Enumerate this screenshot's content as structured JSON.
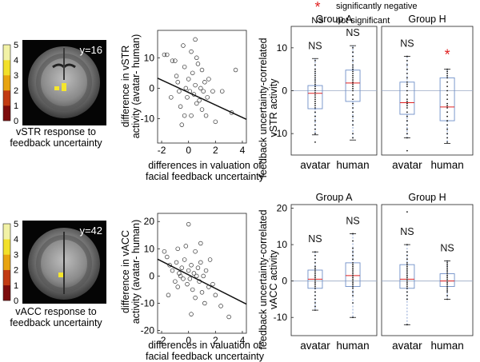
{
  "legend": {
    "sig_symbol": "*",
    "sig_label": "significantly negative",
    "ns_symbol": "NS",
    "ns_label": "not significant",
    "sig_color": "#e02020"
  },
  "colorbar": {
    "ticks": [
      "5",
      "4",
      "3",
      "2",
      "1",
      "0"
    ],
    "colors": [
      "#f2f2a6",
      "#f2e02a",
      "#e8a410",
      "#c23a12",
      "#7d0b0b"
    ]
  },
  "chart_data": [
    {
      "id": "vstr",
      "type": "scatter",
      "brain_image": {
        "slice_label": "y=16",
        "caption": [
          "vSTR response to",
          "feedback uncertainty"
        ]
      },
      "xlabel": "differences in valuation of",
      "xlabel2": "facial feedback uncertainty",
      "ylabel": "difference in vSTR",
      "ylabel2": "activity (avatar- human)",
      "xlim": [
        -2.3,
        4.3
      ],
      "ylim": [
        -18,
        19
      ],
      "xticks": [
        -2,
        0,
        2,
        4
      ],
      "yticks": [
        10,
        0,
        -10
      ],
      "fit_line": {
        "x": [
          -2.3,
          4.3
        ],
        "y": [
          3.3,
          -10.2
        ]
      },
      "points": [
        [
          -1.8,
          11
        ],
        [
          -1.6,
          11
        ],
        [
          -1.2,
          9
        ],
        [
          -1.0,
          9
        ],
        [
          -0.9,
          4
        ],
        [
          -0.8,
          2
        ],
        [
          -0.7,
          -1
        ],
        [
          -0.6,
          -6
        ],
        [
          -0.5,
          -12
        ],
        [
          -0.4,
          14
        ],
        [
          -0.3,
          7
        ],
        [
          -0.2,
          0
        ],
        [
          -0.1,
          -3
        ],
        [
          0.0,
          3
        ],
        [
          0.1,
          -1
        ],
        [
          0.2,
          12
        ],
        [
          0.2,
          -9
        ],
        [
          0.3,
          5
        ],
        [
          0.4,
          -2
        ],
        [
          0.5,
          1
        ],
        [
          0.5,
          16
        ],
        [
          0.6,
          -5
        ],
        [
          0.7,
          8
        ],
        [
          0.8,
          -4
        ],
        [
          0.9,
          0
        ],
        [
          1.0,
          -7
        ],
        [
          1.0,
          6
        ],
        [
          1.1,
          -1
        ],
        [
          1.2,
          2
        ],
        [
          1.3,
          -9
        ],
        [
          1.4,
          -3
        ],
        [
          1.5,
          3
        ],
        [
          1.8,
          -1
        ],
        [
          2.0,
          -11
        ],
        [
          2.5,
          -1
        ],
        [
          3.2,
          -8
        ],
        [
          3.5,
          6
        ],
        [
          -1.3,
          -3
        ],
        [
          -0.3,
          -9
        ],
        [
          0.6,
          10
        ]
      ]
    },
    {
      "id": "vacc",
      "type": "scatter",
      "brain_image": {
        "slice_label": "y=42",
        "caption": [
          "vACC response to",
          "feedback uncertainty"
        ]
      },
      "xlabel": "differences in valuation of",
      "xlabel2": "facial feedback uncertainty",
      "ylabel": "difference in vACC",
      "ylabel2": "activity (avatar- human)",
      "xlim": [
        -2.3,
        4.3
      ],
      "ylim": [
        -21,
        23
      ],
      "xticks": [
        -2,
        0,
        2,
        4
      ],
      "yticks": [
        20,
        10,
        0,
        -10,
        -20
      ],
      "fit_line": {
        "x": [
          -2.3,
          4.3
        ],
        "y": [
          6.2,
          -10.3
        ]
      },
      "points": [
        [
          -1.8,
          9
        ],
        [
          -1.6,
          7
        ],
        [
          -1.4,
          4
        ],
        [
          -1.2,
          2
        ],
        [
          -1.0,
          -2
        ],
        [
          -0.9,
          5
        ],
        [
          -0.8,
          -4
        ],
        [
          -0.7,
          1
        ],
        [
          -0.6,
          0
        ],
        [
          -0.5,
          3
        ],
        [
          -0.4,
          -1
        ],
        [
          -0.3,
          6
        ],
        [
          -0.2,
          11
        ],
        [
          -0.1,
          -3
        ],
        [
          0.0,
          2
        ],
        [
          0.0,
          19
        ],
        [
          0.1,
          -1
        ],
        [
          0.2,
          4
        ],
        [
          0.3,
          -5
        ],
        [
          0.4,
          1
        ],
        [
          0.5,
          9
        ],
        [
          0.5,
          -8
        ],
        [
          0.6,
          0
        ],
        [
          0.7,
          3
        ],
        [
          0.8,
          -2
        ],
        [
          0.9,
          5
        ],
        [
          1.0,
          -6
        ],
        [
          1.1,
          0
        ],
        [
          1.2,
          -10
        ],
        [
          1.3,
          2
        ],
        [
          1.5,
          -4
        ],
        [
          1.8,
          -3
        ],
        [
          2.0,
          -7
        ],
        [
          2.4,
          -11
        ],
        [
          3.0,
          -15
        ],
        [
          -1.5,
          -7
        ],
        [
          -0.8,
          10
        ],
        [
          0.2,
          -14
        ],
        [
          0.9,
          12
        ],
        [
          1.6,
          6
        ]
      ]
    },
    {
      "id": "vstr-box",
      "type": "box",
      "ylabel": "feedback uncertainty-correlated",
      "ylabel2": "vSTR activity",
      "ylim": [
        -15,
        15
      ],
      "yticks": [
        10,
        0,
        -10
      ],
      "categories": [
        "avatar",
        "human"
      ],
      "groups": [
        {
          "name": "Group A",
          "marks": [
            "NS",
            "NS"
          ],
          "boxes": [
            {
              "q1": -4.2,
              "median": -0.6,
              "q3": 1.2,
              "wlo": -10.3,
              "whi": 7.5,
              "points": [
                7,
                6,
                5,
                4.5,
                4,
                3.5,
                3,
                2.5,
                2,
                1.5,
                1,
                0.5,
                0,
                -0.5,
                -1,
                -1.5,
                -2,
                -2.5,
                -3,
                -3.5,
                -4,
                -5,
                -6,
                -7,
                -8,
                -9,
                -10,
                -12
              ]
            },
            {
              "q1": -2.5,
              "median": 1.8,
              "q3": 4.8,
              "wlo": -11.5,
              "whi": 10.5,
              "points": [
                10,
                9,
                8,
                7,
                6,
                5.5,
                5,
                4.5,
                4,
                3.5,
                3,
                2.5,
                2,
                1.5,
                1,
                0.5,
                0,
                -1,
                -2,
                -3,
                -4,
                -5,
                -6,
                -7,
                -8,
                -10,
                -11
              ]
            }
          ]
        },
        {
          "name": "Group H",
          "marks": [
            "NS",
            "*"
          ],
          "boxes": [
            {
              "q1": -5.5,
              "median": -2.8,
              "q3": 2.0,
              "wlo": -11.0,
              "whi": 8.0,
              "points": [
                8,
                7,
                6,
                5,
                4,
                3,
                2,
                1.5,
                1,
                0,
                -1,
                -2,
                -2.5,
                -3,
                -3.5,
                -4,
                -5,
                -6,
                -7,
                -8,
                -9,
                -10,
                -11,
                -14
              ]
            },
            {
              "q1": -7.0,
              "median": -3.8,
              "q3": 3.0,
              "wlo": -12.3,
              "whi": 5.0,
              "points": [
                5,
                4.5,
                4,
                3.5,
                3,
                2,
                1,
                0,
                -1,
                -2,
                -3,
                -3.5,
                -4,
                -5,
                -6,
                -7,
                -8,
                -9,
                -10,
                -11,
                -12
              ]
            }
          ]
        }
      ]
    },
    {
      "id": "vacc-box",
      "type": "box",
      "ylabel": "feedback uncertainty-correlated",
      "ylabel2": "vACC activity",
      "ylim": [
        -15,
        21
      ],
      "yticks": [
        20,
        10,
        0,
        -10
      ],
      "categories": [
        "avatar",
        "human"
      ],
      "groups": [
        {
          "name": "Group A",
          "marks": [
            "NS",
            "NS"
          ],
          "boxes": [
            {
              "q1": -2.0,
              "median": 0.5,
              "q3": 3.0,
              "wlo": -8.0,
              "whi": 8.0,
              "points": [
                8,
                7,
                6,
                5,
                4,
                3.5,
                3,
                2.5,
                2,
                1.5,
                1,
                0.5,
                0,
                -0.5,
                -1,
                -1.5,
                -2,
                -3,
                -4,
                -5,
                -6,
                -7,
                -8
              ]
            },
            {
              "q1": -1.5,
              "median": 1.5,
              "q3": 5.0,
              "wlo": -10.0,
              "whi": 13.0,
              "points": [
                13,
                11,
                9,
                8,
                7,
                6,
                5,
                4.5,
                4,
                3.5,
                3,
                2.5,
                2,
                1.5,
                1,
                0.5,
                0,
                -0.5,
                -1,
                -1.5,
                -2,
                -3,
                -4,
                -6,
                -10
              ]
            }
          ]
        },
        {
          "name": "Group H",
          "marks": [
            "NS",
            "NS"
          ],
          "boxes": [
            {
              "q1": -2.0,
              "median": 0.5,
              "q3": 4.5,
              "wlo": -12.0,
              "whi": 10.0,
              "points": [
                19,
                10,
                8,
                7,
                6,
                5,
                4.5,
                4,
                3.5,
                3,
                2.5,
                2,
                1.5,
                1,
                0.5,
                0,
                -0.5,
                -1,
                -1.5,
                -2,
                -3,
                -4,
                -5,
                -12
              ]
            },
            {
              "q1": -1.5,
              "median": 0.0,
              "q3": 2.0,
              "wlo": -5.0,
              "whi": 5.5,
              "points": [
                5.5,
                5,
                4.5,
                4,
                3.5,
                3,
                2.5,
                2,
                1.5,
                1,
                0.5,
                0,
                -0.5,
                -1,
                -1.5,
                -2,
                -2.5,
                -3,
                -4,
                -5
              ]
            }
          ]
        }
      ]
    }
  ]
}
